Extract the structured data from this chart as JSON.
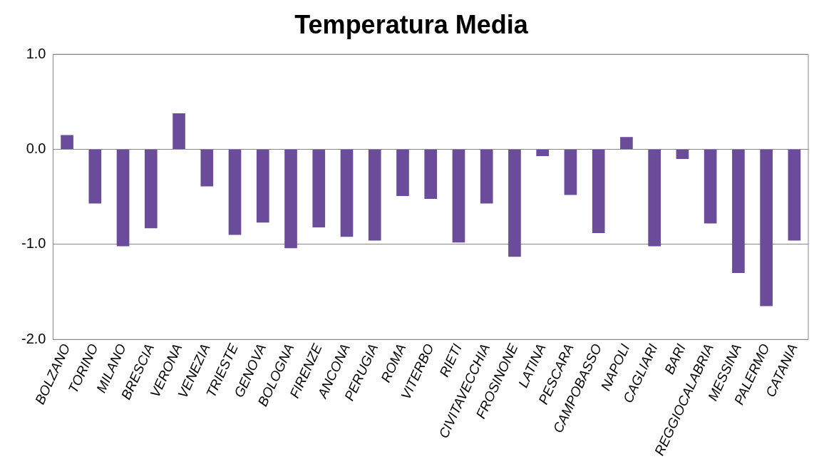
{
  "chart_data": {
    "type": "bar",
    "title": "Temperatura Media",
    "categories": [
      "BOLZANO",
      "TORINO",
      "MILANO",
      "BRESCIA",
      "VERONA",
      "VENEZIA",
      "TRIESTE",
      "GENOVA",
      "BOLOGNA",
      "FIRENZE",
      "ANCONA",
      "PERUGIA",
      "ROMA",
      "VITERBO",
      "RIETI",
      "CIVITAVECCHIA",
      "FROSINONE",
      "LATINA",
      "PESCARA",
      "CAMPOBASSO",
      "NAPOLI",
      "CAGLIARI",
      "BARI",
      "REGGIOCALABRIA",
      "MESSINA",
      "PALERMO",
      "CATANIA"
    ],
    "values": [
      0.15,
      -0.57,
      -1.02,
      -0.83,
      0.38,
      -0.39,
      -0.9,
      -0.77,
      -1.04,
      -0.82,
      -0.92,
      -0.96,
      -0.49,
      -0.52,
      -0.98,
      -0.57,
      -1.13,
      -0.07,
      -0.48,
      -0.88,
      0.13,
      -1.02,
      -0.1,
      -0.78,
      -1.3,
      -1.65,
      -0.96
    ],
    "color": "#6b4c9a",
    "ylim": [
      -2,
      1
    ],
    "yticks": [
      {
        "value": -2,
        "label": "-2.0"
      },
      {
        "value": -1,
        "label": "-1.0"
      },
      {
        "value": 0,
        "label": "0.0"
      },
      {
        "value": 1,
        "label": "1.0"
      }
    ],
    "grid": "y",
    "legend": false
  }
}
